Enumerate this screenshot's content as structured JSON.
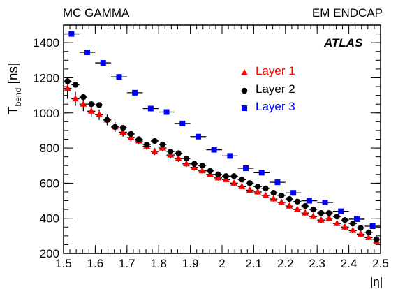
{
  "header": {
    "left": "MC GAMMA",
    "right": "EM ENDCAP"
  },
  "brand": "ATLAS",
  "chart_data": {
    "type": "scatter",
    "title": "",
    "xlabel": "|η|",
    "ylabel_main": "T",
    "ylabel_sub": "bend",
    "ylabel_unit": "[ns]",
    "xlim": [
      1.5,
      2.5
    ],
    "ylim": [
      200,
      1500
    ],
    "xticks": [
      1.5,
      1.6,
      1.7,
      1.8,
      1.9,
      2.0,
      2.1,
      2.2,
      2.3,
      2.4,
      2.5
    ],
    "xtick_labels": [
      "1.5",
      "1.6",
      "1.7",
      "1.8",
      "1.9",
      "2",
      "2.1",
      "2.2",
      "2.3",
      "2.4",
      "2.5"
    ],
    "yticks": [
      200,
      400,
      600,
      800,
      1000,
      1200,
      1400
    ],
    "ytick_labels": [
      "200",
      "400",
      "600",
      "800",
      "1000",
      "1200",
      "1400"
    ],
    "legend_position": "top-right",
    "series": [
      {
        "name": "Layer 1",
        "color": "#ff0000",
        "marker": "triangle",
        "x": [
          1.5125,
          1.5375,
          1.5625,
          1.5875,
          1.6125,
          1.6375,
          1.6625,
          1.6875,
          1.7125,
          1.7375,
          1.7625,
          1.7875,
          1.8125,
          1.8375,
          1.8625,
          1.8875,
          1.9125,
          1.9375,
          1.9625,
          1.9875,
          2.0125,
          2.0375,
          2.0625,
          2.0875,
          2.1125,
          2.1375,
          2.1625,
          2.1875,
          2.2125,
          2.2375,
          2.2625,
          2.2875,
          2.3125,
          2.3375,
          2.3625,
          2.3875,
          2.4125,
          2.4375,
          2.4625,
          2.4875
        ],
        "y": [
          1140,
          1080,
          1050,
          1010,
          990,
          960,
          920,
          890,
          860,
          840,
          810,
          780,
          800,
          760,
          740,
          710,
          690,
          670,
          650,
          630,
          620,
          600,
          580,
          560,
          550,
          530,
          510,
          490,
          470,
          450,
          430,
          410,
          390,
          400,
          370,
          350,
          330,
          310,
          290,
          265
        ],
        "yerr": [
          60,
          40,
          40,
          35,
          30,
          30,
          28,
          25,
          25,
          20,
          20,
          20,
          20,
          20,
          18,
          18,
          18,
          15,
          15,
          15,
          15,
          15,
          15,
          15,
          15,
          15,
          15,
          15,
          15,
          15,
          15,
          15,
          15,
          15,
          15,
          15,
          15,
          15,
          15,
          15
        ]
      },
      {
        "name": "Layer 2",
        "color": "#000000",
        "marker": "circle",
        "x": [
          1.5125,
          1.5375,
          1.5625,
          1.5875,
          1.6125,
          1.6375,
          1.6625,
          1.6875,
          1.7125,
          1.7375,
          1.7625,
          1.7875,
          1.8125,
          1.8375,
          1.8625,
          1.8875,
          1.9125,
          1.9375,
          1.9625,
          1.9875,
          2.0125,
          2.0375,
          2.0625,
          2.0875,
          2.1125,
          2.1375,
          2.1625,
          2.1875,
          2.2125,
          2.2375,
          2.2625,
          2.2875,
          2.3125,
          2.3375,
          2.3625,
          2.3875,
          2.4125,
          2.4375,
          2.4625,
          2.4875
        ],
        "y": [
          1180,
          1160,
          1090,
          1050,
          1045,
          960,
          920,
          915,
          880,
          850,
          820,
          840,
          820,
          780,
          770,
          740,
          710,
          700,
          670,
          650,
          640,
          640,
          620,
          600,
          580,
          570,
          545,
          530,
          510,
          495,
          470,
          450,
          430,
          430,
          410,
          390,
          370,
          345,
          320,
          280
        ]
      },
      {
        "name": "Layer 3",
        "color": "#0000ff",
        "marker": "square",
        "x": [
          1.525,
          1.575,
          1.625,
          1.675,
          1.725,
          1.775,
          1.825,
          1.875,
          1.925,
          1.975,
          2.025,
          2.075,
          2.125,
          2.175,
          2.225,
          2.275,
          2.325,
          2.375,
          2.425,
          2.475
        ],
        "y": [
          1450,
          1345,
          1285,
          1205,
          1115,
          1025,
          1005,
          940,
          865,
          790,
          755,
          685,
          660,
          605,
          545,
          500,
          490,
          440,
          395,
          355
        ]
      }
    ]
  }
}
